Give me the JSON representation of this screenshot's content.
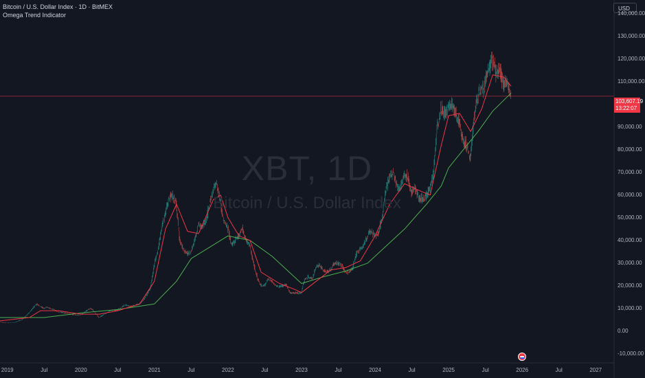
{
  "header": {
    "title": "Bitcoin / U.S. Dollar Index · 1D · BitMEX",
    "indicator": "Omega Trend Indicator",
    "currency_label": "USD"
  },
  "watermark": {
    "symbol": "XBT, 1D",
    "description": "Bitcoin / U.S. Dollar Index"
  },
  "price_tag": {
    "price": "103,607.19",
    "countdown": "13:22:07"
  },
  "colors": {
    "background": "#131722",
    "up_candle": "#26a69a",
    "down_candle": "#ef5350",
    "fast_line": "#f23645",
    "slow_line": "#4caf50",
    "price_line": "#f23645"
  },
  "chart_data": {
    "type": "line",
    "y_axis_ticks": [
      "140,000.00",
      "130,000.00",
      "120,000.00",
      "110,000.00",
      "90,000.00",
      "80,000.00",
      "70,000.00",
      "60,000.00",
      "50,000.00",
      "40,000.00",
      "30,000.00",
      "20,000.00",
      "10,000.00",
      "0.00",
      "-10,000.00"
    ],
    "y_axis_values": [
      140000,
      130000,
      120000,
      110000,
      90000,
      80000,
      70000,
      60000,
      50000,
      40000,
      30000,
      20000,
      10000,
      0,
      -10000
    ],
    "x_axis_ticks": [
      "2019",
      "Jul",
      "2020",
      "Jul",
      "2021",
      "Jul",
      "2022",
      "Jul",
      "2023",
      "Jul",
      "2024",
      "Jul",
      "2025",
      "Jul",
      "2026",
      "Jul",
      "2027"
    ],
    "x_axis_values": [
      2019.0,
      2019.5,
      2020.0,
      2020.5,
      2021.0,
      2021.5,
      2022.0,
      2022.5,
      2023.0,
      2023.5,
      2024.0,
      2024.5,
      2025.0,
      2025.5,
      2026.0,
      2026.5,
      2027.0
    ],
    "ylim": [
      -14000,
      146000
    ],
    "xlim": [
      2018.9,
      2027.25
    ],
    "grid": false,
    "current_price": 103607.19,
    "series": [
      {
        "role": "price",
        "x": [
          2018.9,
          2019.0,
          2019.1,
          2019.2,
          2019.3,
          2019.4,
          2019.45,
          2019.5,
          2019.55,
          2019.6,
          2019.7,
          2019.8,
          2019.9,
          2020.0,
          2020.1,
          2020.15,
          2020.2,
          2020.25,
          2020.3,
          2020.4,
          2020.5,
          2020.6,
          2020.7,
          2020.8,
          2020.85,
          2020.9,
          2020.95,
          2021.0,
          2021.05,
          2021.1,
          2021.15,
          2021.2,
          2021.25,
          2021.3,
          2021.35,
          2021.4,
          2021.45,
          2021.5,
          2021.55,
          2021.6,
          2021.65,
          2021.7,
          2021.75,
          2021.8,
          2021.85,
          2021.9,
          2021.95,
          2022.0,
          2022.05,
          2022.1,
          2022.15,
          2022.2,
          2022.25,
          2022.3,
          2022.35,
          2022.4,
          2022.45,
          2022.5,
          2022.55,
          2022.6,
          2022.65,
          2022.7,
          2022.75,
          2022.8,
          2022.85,
          2022.9,
          2022.95,
          2023.0,
          2023.05,
          2023.1,
          2023.15,
          2023.2,
          2023.25,
          2023.3,
          2023.35,
          2023.4,
          2023.45,
          2023.5,
          2023.55,
          2023.6,
          2023.65,
          2023.7,
          2023.75,
          2023.8,
          2023.85,
          2023.9,
          2023.95,
          2024.0,
          2024.05,
          2024.1,
          2024.15,
          2024.2,
          2024.25,
          2024.3,
          2024.35,
          2024.4,
          2024.45,
          2024.5,
          2024.55,
          2024.6,
          2024.65,
          2024.7,
          2024.75,
          2024.8,
          2024.85,
          2024.9,
          2024.95,
          2025.0,
          2025.05,
          2025.1,
          2025.15,
          2025.2,
          2025.25,
          2025.3,
          2025.35,
          2025.4,
          2025.45,
          2025.5,
          2025.55,
          2025.6,
          2025.65,
          2025.7,
          2025.75,
          2025.8,
          2025.85
        ],
        "y": [
          4000,
          3700,
          3800,
          5000,
          8000,
          12000,
          11000,
          10000,
          10500,
          10000,
          8500,
          8000,
          7200,
          7000,
          9500,
          10000,
          8000,
          6000,
          7000,
          9000,
          9300,
          11500,
          11000,
          12000,
          13500,
          16000,
          19000,
          29000,
          35000,
          45000,
          52000,
          58000,
          60000,
          56000,
          40000,
          36000,
          34000,
          35000,
          40000,
          47000,
          46000,
          48000,
          55000,
          62000,
          65000,
          57000,
          48000,
          46000,
          38000,
          40000,
          42000,
          45000,
          40000,
          38000,
          30000,
          24000,
          20000,
          20000,
          23000,
          22000,
          20000,
          19500,
          20000,
          20500,
          16500,
          17000,
          16800,
          17000,
          23000,
          24000,
          23000,
          28000,
          29000,
          27000,
          26000,
          27000,
          30000,
          30000,
          29000,
          26000,
          26000,
          27500,
          34000,
          36000,
          38000,
          42000,
          44000,
          42000,
          43000,
          50000,
          62000,
          68000,
          70000,
          64000,
          63000,
          69000,
          68000,
          61000,
          63000,
          59000,
          58000,
          60000,
          63000,
          70000,
          90000,
          98000,
          96000,
          98000,
          101000,
          97000,
          92000,
          84000,
          82000,
          76000,
          94000,
          104000,
          106000,
          108000,
          117000,
          119000,
          114000,
          115000,
          108000,
          111000,
          103607
        ]
      },
      {
        "role": "fast-trend",
        "x": [
          2018.9,
          2019.3,
          2019.45,
          2019.7,
          2020.0,
          2020.25,
          2020.5,
          2020.8,
          2021.0,
          2021.15,
          2021.3,
          2021.45,
          2021.6,
          2021.8,
          2021.9,
          2022.0,
          2022.15,
          2022.3,
          2022.45,
          2022.7,
          2022.9,
          2023.0,
          2023.2,
          2023.4,
          2023.6,
          2023.8,
          2024.0,
          2024.2,
          2024.4,
          2024.6,
          2024.75,
          2024.9,
          2025.0,
          2025.15,
          2025.3,
          2025.45,
          2025.6,
          2025.75,
          2025.85
        ],
        "y": [
          4500,
          6000,
          9000,
          9000,
          7500,
          7500,
          9000,
          12000,
          22000,
          45000,
          56000,
          44000,
          43000,
          58000,
          60000,
          50000,
          42000,
          40000,
          26000,
          21000,
          18500,
          17000,
          22000,
          27000,
          28000,
          31000,
          42000,
          56000,
          65000,
          62000,
          60000,
          82000,
          95000,
          96000,
          88000,
          98000,
          113000,
          112000,
          108000
        ]
      },
      {
        "role": "slow-trend",
        "x": [
          2018.9,
          2019.5,
          2020.0,
          2020.5,
          2021.0,
          2021.3,
          2021.5,
          2021.8,
          2022.0,
          2022.3,
          2022.6,
          2022.9,
          2023.0,
          2023.3,
          2023.6,
          2023.9,
          2024.1,
          2024.4,
          2024.7,
          2024.9,
          2025.0,
          2025.2,
          2025.4,
          2025.6,
          2025.85
        ],
        "y": [
          6000,
          6000,
          8000,
          9500,
          12000,
          22000,
          32000,
          38000,
          42000,
          40000,
          33000,
          24000,
          21000,
          24000,
          26500,
          30000,
          36000,
          45000,
          56000,
          64000,
          72000,
          80000,
          88000,
          97000,
          105000
        ]
      }
    ]
  }
}
